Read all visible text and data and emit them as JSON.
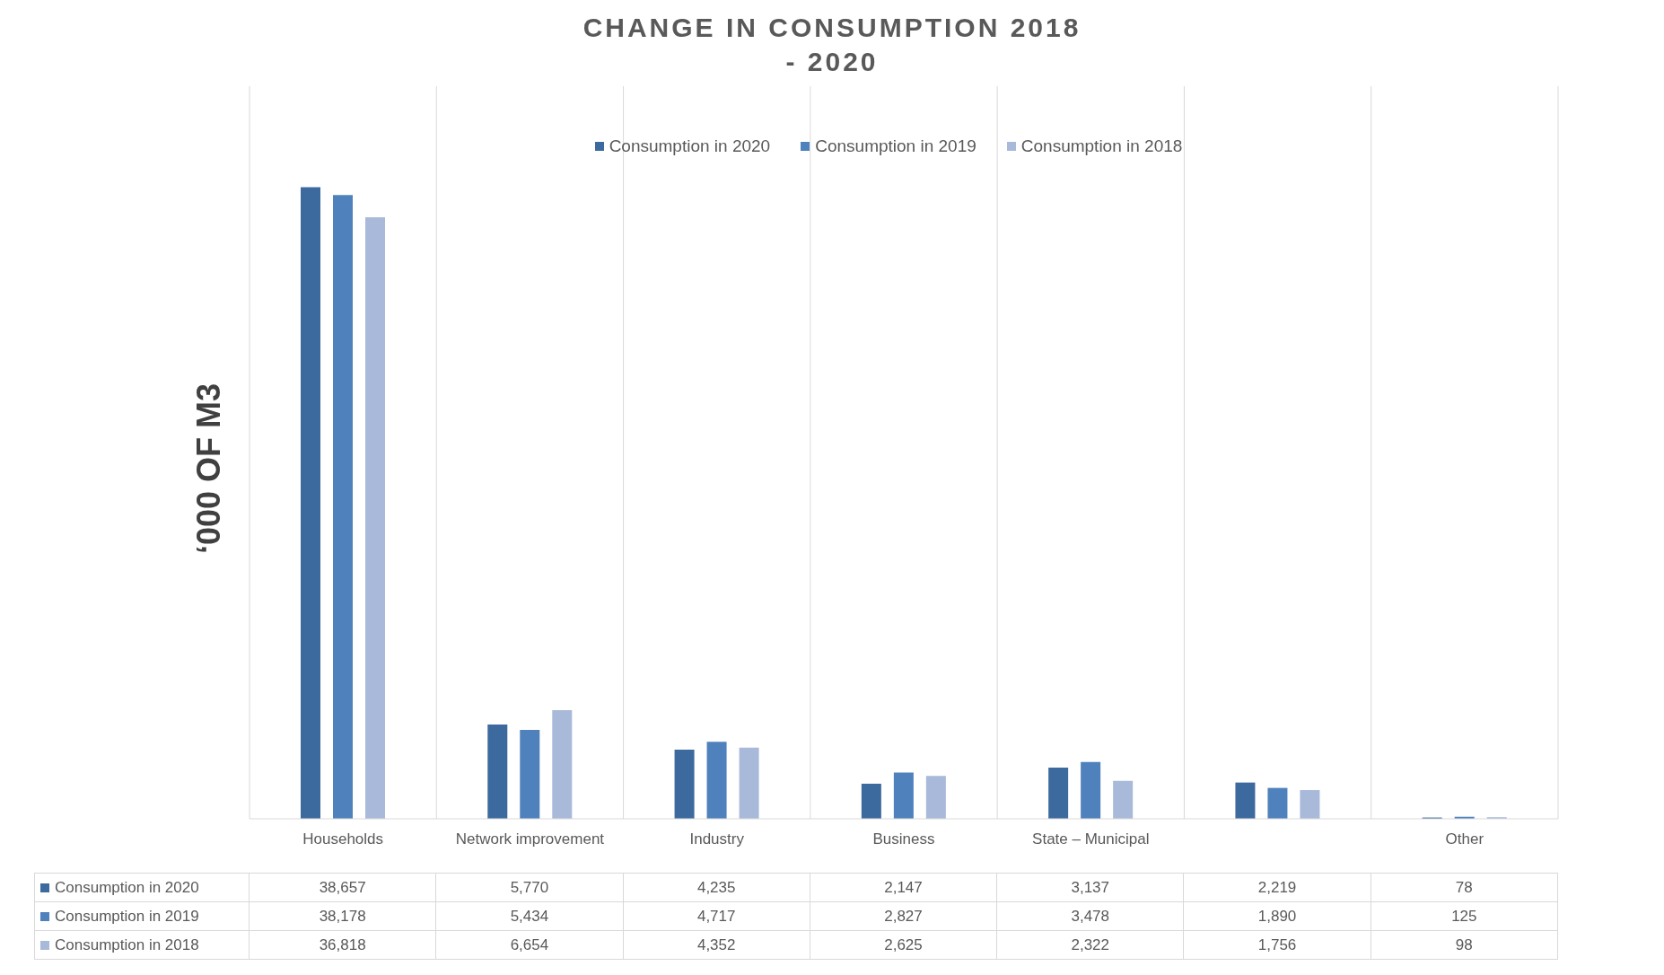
{
  "chart_data": {
    "type": "bar",
    "title": "CHANGE IN CONSUMPTION 2018 - 2020",
    "ylabel": "‘000 OF M3",
    "categories": [
      "Households",
      "Network improvement",
      "Industry",
      "Business",
      "State – Municipal",
      null,
      "Other"
    ],
    "series": [
      {
        "name": "Consumption in 2020",
        "color": "#3d6a9e",
        "values": [
          38657,
          5770,
          4235,
          2147,
          3137,
          2219,
          78
        ],
        "value_labels": [
          "38,657",
          "5,770",
          "4,235",
          "2,147",
          "3,137",
          "2,219",
          "78"
        ]
      },
      {
        "name": "Consumption in 2019",
        "color": "#4f81bd",
        "values": [
          38178,
          5434,
          4717,
          2827,
          3478,
          1890,
          125
        ],
        "value_labels": [
          "38,178",
          "5,434",
          "4,717",
          "2,827",
          "3,478",
          "1,890",
          "125"
        ]
      },
      {
        "name": "Consumption in 2018",
        "color": "#a9b9d9",
        "values": [
          36818,
          6654,
          4352,
          2625,
          2322,
          1756,
          98
        ],
        "value_labels": [
          "36,818",
          "6,654",
          "4,352",
          "2,625",
          "2,322",
          "1,756",
          "98"
        ]
      }
    ],
    "legend": "top",
    "grid": "x"
  }
}
